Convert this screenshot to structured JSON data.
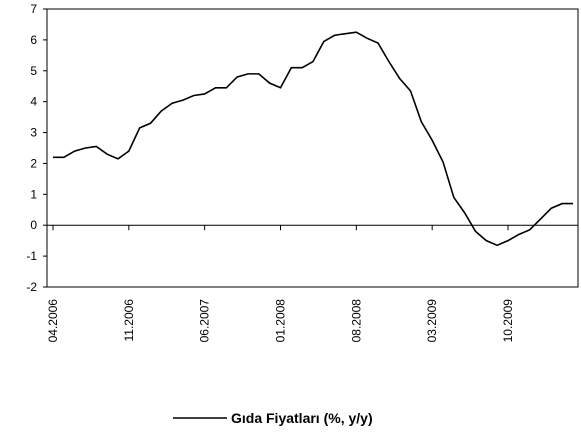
{
  "chart_data": {
    "type": "line",
    "categories": [
      "04.2006",
      null,
      null,
      null,
      null,
      null,
      null,
      "11.2006",
      null,
      null,
      null,
      null,
      null,
      null,
      "06.2007",
      null,
      null,
      null,
      null,
      null,
      null,
      "01.2008",
      null,
      null,
      null,
      null,
      null,
      null,
      "08.2008",
      null,
      null,
      null,
      null,
      null,
      null,
      "03.2009",
      null,
      null,
      null,
      null,
      null,
      null,
      "10.2009",
      null,
      null,
      null,
      null,
      null,
      null
    ],
    "series": [
      {
        "name": "Gıda Fiyatları (%, y/y)",
        "color": "#000000",
        "values": [
          2.2,
          2.2,
          2.4,
          2.5,
          2.55,
          2.3,
          2.15,
          2.4,
          3.15,
          3.3,
          3.7,
          3.95,
          4.05,
          4.2,
          4.25,
          4.45,
          4.45,
          4.8,
          4.9,
          4.9,
          4.6,
          4.45,
          5.1,
          5.1,
          5.3,
          5.95,
          6.15,
          6.2,
          6.25,
          6.05,
          5.9,
          5.3,
          4.75,
          4.35,
          3.35,
          2.75,
          2.05,
          0.9,
          0.4,
          -0.2,
          -0.5,
          -0.65,
          -0.5,
          -0.3,
          -0.15,
          0.2,
          0.55,
          0.7,
          0.7
        ]
      }
    ],
    "ylim": [
      -2,
      7
    ],
    "yticks": [
      -2,
      -1,
      0,
      1,
      2,
      3,
      4,
      5,
      6,
      7
    ],
    "legend": "bottom"
  }
}
